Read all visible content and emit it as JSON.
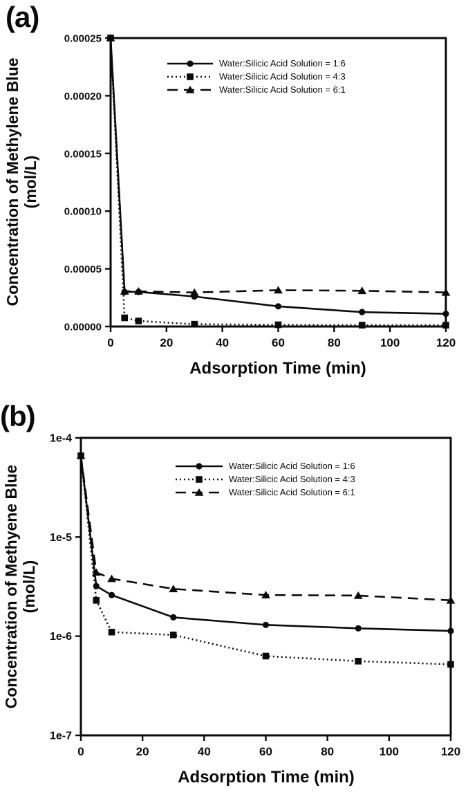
{
  "figure": {
    "background": "#ffffff",
    "ink": "#0a0a0a"
  },
  "chart_data": [
    {
      "id": "a",
      "panel_label": "(a)",
      "type": "line",
      "yscale": "linear",
      "title": "",
      "xlabel": "Adsorption Time (min)",
      "ylabel": "Concentration of Methylene Blue",
      "ylabel_units": "(mol/L)",
      "xlim": [
        0,
        120
      ],
      "ylim": [
        0,
        0.00025
      ],
      "xticks": [
        0,
        20,
        40,
        60,
        80,
        100,
        120
      ],
      "yticks": [
        0,
        5e-05,
        0.0001,
        0.00015,
        0.0002,
        0.00025
      ],
      "ytick_labels": [
        "0.00000",
        "0.00005",
        "0.00010",
        "0.00015",
        "0.00020",
        "0.00025"
      ],
      "grid": false,
      "legend_position": "inside-upper-left",
      "x": [
        0,
        5,
        10,
        30,
        60,
        90,
        120
      ],
      "series": [
        {
          "name": "Water:Silicic Acid Solution = 1:6",
          "line_style": "solid",
          "marker": "circle",
          "color": "#0a0a0a",
          "values": [
            0.00025,
            3e-05,
            3e-05,
            2.6e-05,
            1.75e-05,
            1.25e-05,
            1.1e-05
          ]
        },
        {
          "name": "Water:Silicic Acid Solution = 4:3",
          "line_style": "dotted",
          "marker": "square",
          "color": "#0a0a0a",
          "values": [
            0.00025,
            7.5e-06,
            4.8e-06,
            2e-06,
            1.5e-06,
            1.2e-06,
            1.2e-06
          ]
        },
        {
          "name": "Water:Silicic Acid Solution = 6:1",
          "line_style": "dashed",
          "marker": "triangle",
          "color": "#0a0a0a",
          "values": [
            0.00025,
            3.05e-05,
            3.05e-05,
            2.95e-05,
            3.15e-05,
            3.1e-05,
            2.95e-05
          ]
        }
      ]
    },
    {
      "id": "b",
      "panel_label": "(b)",
      "type": "line",
      "yscale": "log",
      "title": "",
      "xlabel": "Adsorption Time (min)",
      "ylabel": "Concentration of Methyene Blue",
      "ylabel_units": "(mol/L)",
      "xlim": [
        0,
        120
      ],
      "ylim": [
        1e-07,
        0.0001
      ],
      "xticks": [
        0,
        20,
        40,
        60,
        80,
        100,
        120
      ],
      "yticks": [
        0.0001,
        1e-05,
        1e-06,
        1e-07
      ],
      "ytick_labels": [
        "1e-4",
        "1e-5",
        "1e-6",
        "1e-7"
      ],
      "grid": false,
      "legend_position": "inside-upper-left",
      "x": [
        0,
        5,
        10,
        30,
        60,
        90,
        120
      ],
      "series": [
        {
          "name": "Water:Silicic Acid Solution = 1:6",
          "line_style": "solid",
          "marker": "circle",
          "color": "#0a0a0a",
          "values": [
            6.6e-05,
            3.2e-06,
            2.6e-06,
            1.55e-06,
            1.3e-06,
            1.2e-06,
            1.13e-06
          ]
        },
        {
          "name": "Water:Silicic Acid Solution = 4:3",
          "line_style": "dotted",
          "marker": "square",
          "color": "#0a0a0a",
          "values": [
            6.6e-05,
            2.3e-06,
            1.1e-06,
            1.03e-06,
            6.3e-07,
            5.6e-07,
            5.2e-07
          ]
        },
        {
          "name": "Water:Silicic Acid Solution = 6:1",
          "line_style": "dashed",
          "marker": "triangle",
          "color": "#0a0a0a",
          "values": [
            6.6e-05,
            4.4e-06,
            3.8e-06,
            3e-06,
            2.6e-06,
            2.57e-06,
            2.3e-06
          ]
        }
      ]
    }
  ]
}
